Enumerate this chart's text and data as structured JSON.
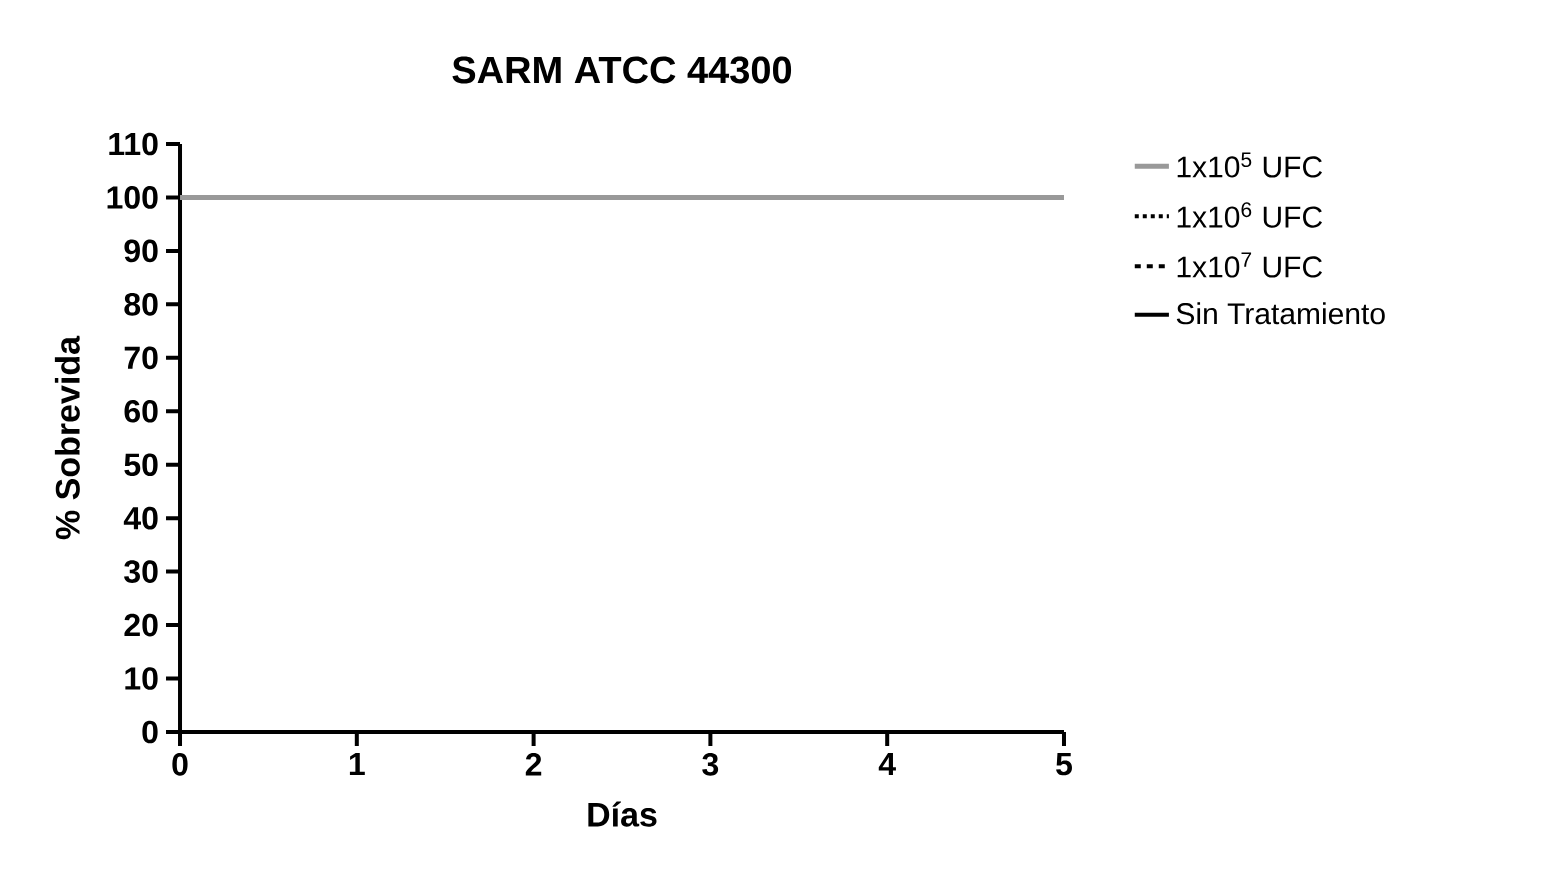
{
  "chart_data": {
    "type": "step",
    "title": "SARM ATCC 44300",
    "xlabel": "Días",
    "ylabel": "% Sobrevida",
    "xlim": [
      0,
      5
    ],
    "xticks": [
      0,
      1,
      2,
      3,
      4,
      5
    ],
    "ylim": [
      0,
      110
    ],
    "yticks": [
      0,
      10,
      20,
      30,
      40,
      50,
      60,
      70,
      80,
      90,
      100,
      110
    ],
    "grid": false,
    "legend": "right",
    "x": [
      0,
      5
    ],
    "series": [
      {
        "name": "1x10$^{5}$ UFC",
        "color": "#999999",
        "line_style": "solid",
        "values": [
          100,
          100
        ]
      },
      {
        "name": "1x10$^{6}$ UFC",
        "color": "#000000",
        "line_style": "dotted",
        "values": [
          null,
          null
        ]
      },
      {
        "name": "1x10$^{7}$ UFC",
        "color": "#000000",
        "line_style": "dashed",
        "values": [
          null,
          null
        ]
      },
      {
        "name": "Sin Tratamiento",
        "color": "#000000",
        "line_style": "solid",
        "values": [
          null,
          null
        ]
      }
    ]
  }
}
